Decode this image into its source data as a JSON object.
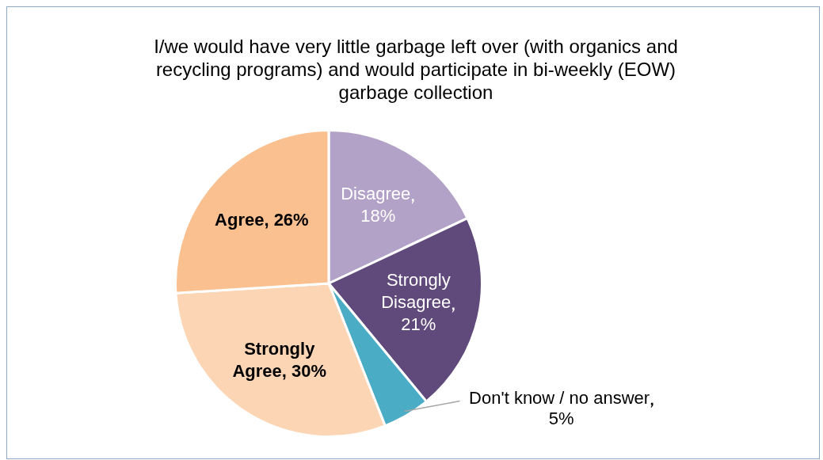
{
  "chart_data": {
    "type": "pie",
    "title": "I/we would have very little garbage left over (with organics and recycling programs) and would participate in bi-weekly (EOW) garbage collection",
    "categories": [
      "Disagree",
      "Strongly Disagree",
      "Don't know / no answer",
      "Strongly Agree",
      "Agree"
    ],
    "values": [
      18,
      21,
      5,
      30,
      26
    ],
    "value_labels": [
      "18%",
      "21%",
      "5%",
      "30%",
      "26%"
    ],
    "colors": [
      "#b3a2c7",
      "#604a7b",
      "#4bacc6",
      "#fcd5b5",
      "#fac090"
    ],
    "legend": false
  }
}
